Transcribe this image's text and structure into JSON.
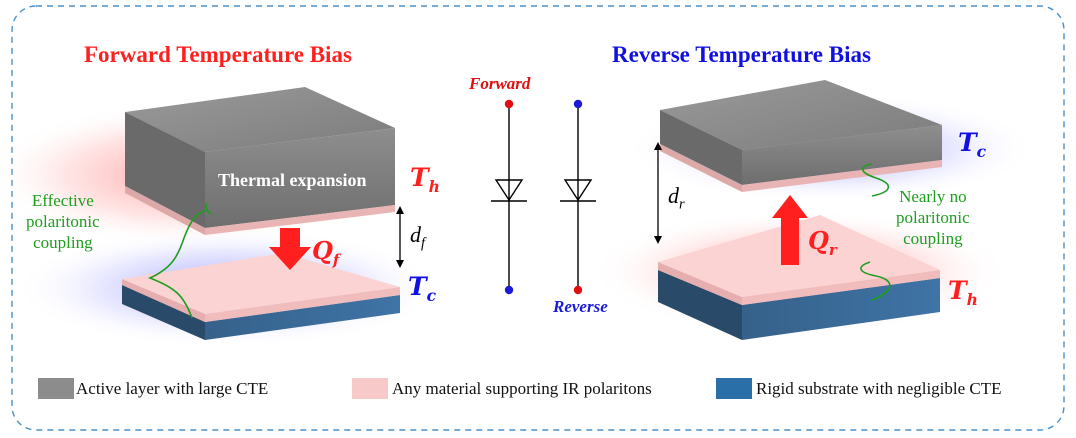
{
  "diagram": {
    "left_title": "Forward Temperature Bias",
    "right_title": "Reverse Temperature Bias",
    "thermal_expansion": "Thermal expansion",
    "left_annotation": [
      "Effective",
      "polaritonic",
      "coupling"
    ],
    "right_annotation": [
      "Nearly no",
      "polaritonic",
      "coupling"
    ],
    "temps": {
      "left_top": {
        "sym": "T",
        "sub": "h"
      },
      "left_bottom": {
        "sym": "T",
        "sub": "c"
      },
      "right_top": {
        "sym": "T",
        "sub": "c"
      },
      "right_bottom": {
        "sym": "T",
        "sub": "h"
      }
    },
    "heat": {
      "forward": {
        "sym": "Q",
        "sub": "f"
      },
      "reverse": {
        "sym": "Q",
        "sub": "r"
      }
    },
    "gaps": {
      "forward": {
        "sym": "d",
        "sub": "f"
      },
      "reverse": {
        "sym": "d",
        "sub": "r"
      }
    },
    "diode_labels": {
      "forward": "Forward",
      "reverse": "Reverse"
    }
  },
  "legend": [
    {
      "label": "Active layer with large CTE",
      "color": "#8c8c8c"
    },
    {
      "label": "Any material supporting IR polaritons",
      "color": "#f7c9c9"
    },
    {
      "label": "Rigid substrate with negligible CTE",
      "color": "#2b6fa8"
    }
  ],
  "colors": {
    "hot": "#ff1f1f",
    "cold": "#1010e0",
    "annotation": "#1e9e1e",
    "frame": "#4a90c8"
  }
}
